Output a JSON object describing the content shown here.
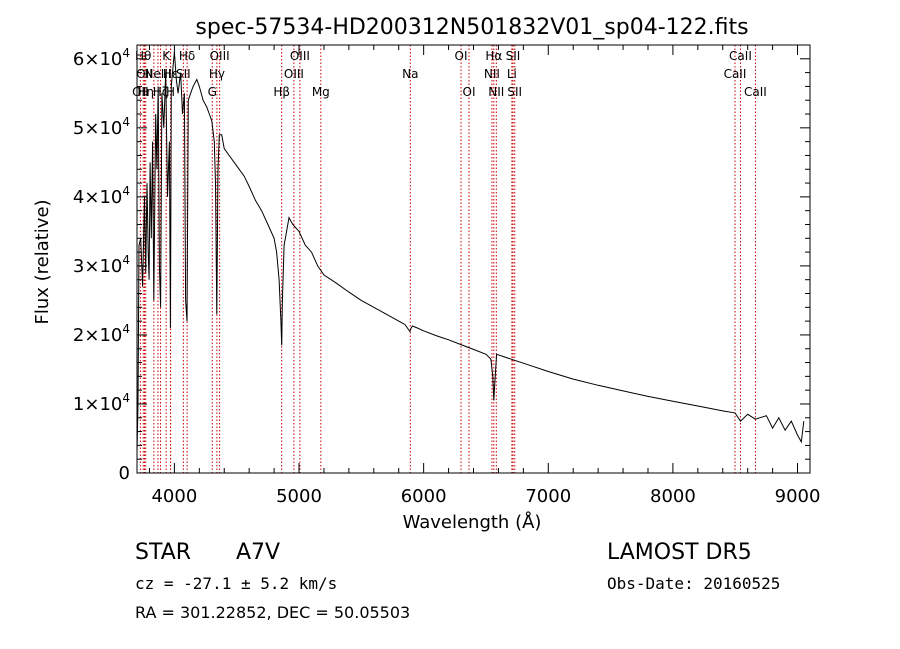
{
  "chart_data": {
    "type": "line",
    "title": "spec-57534-HD200312N501832V01_sp04-122.fits",
    "xlabel": "Wavelength (Å)",
    "ylabel": "Flux (relative)",
    "xlim": [
      3700,
      9100
    ],
    "ylim": [
      0,
      62000
    ],
    "xticks": [
      4000,
      5000,
      6000,
      7000,
      8000,
      9000
    ],
    "xtick_labels": [
      "4000",
      "5000",
      "6000",
      "7000",
      "8000",
      "9000"
    ],
    "yticks": [
      0,
      10000,
      20000,
      30000,
      40000,
      50000,
      60000
    ],
    "ytick_labels": [
      {
        "mant": "0",
        "exp": ""
      },
      {
        "mant": "1×10",
        "exp": "4"
      },
      {
        "mant": "2×10",
        "exp": "4"
      },
      {
        "mant": "3×10",
        "exp": "4"
      },
      {
        "mant": "4×10",
        "exp": "4"
      },
      {
        "mant": "5×10",
        "exp": "4"
      },
      {
        "mant": "6×10",
        "exp": "4"
      }
    ],
    "grid": false,
    "line_color": "#000000",
    "marker_color": "#cc0000",
    "series": [
      {
        "x": [
          3700,
          3708,
          3716,
          3730,
          3745,
          3760,
          3770,
          3780,
          3790,
          3797,
          3805,
          3815,
          3825,
          3835,
          3850,
          3860,
          3870,
          3880,
          3889,
          3900,
          3915,
          3930,
          3945,
          3960,
          3968,
          3975,
          3985,
          4000,
          4015,
          4030,
          4050,
          4065,
          4080,
          4090,
          4101,
          4112,
          4130,
          4150,
          4180,
          4200,
          4230,
          4260,
          4280,
          4300,
          4320,
          4330,
          4340,
          4350,
          4360,
          4380,
          4400,
          4440,
          4480,
          4520,
          4560,
          4600,
          4650,
          4700,
          4750,
          4800,
          4820,
          4840,
          4855,
          4861,
          4867,
          4880,
          4900,
          4920,
          4950,
          5000,
          5050,
          5100,
          5150,
          5200,
          5300,
          5400,
          5500,
          5600,
          5700,
          5800,
          5850,
          5890,
          5900,
          5910,
          5950,
          6000,
          6100,
          6200,
          6300,
          6400,
          6500,
          6540,
          6555,
          6563,
          6571,
          6585,
          6650,
          6800,
          7000,
          7200,
          7400,
          7600,
          7800,
          8000,
          8200,
          8400,
          8498,
          8542,
          8600,
          8662,
          8750,
          8800,
          8850,
          8900,
          8950,
          9000,
          9030,
          9050
        ],
        "y": [
          3000,
          10000,
          33000,
          34000,
          27000,
          40000,
          29000,
          42000,
          32000,
          28000,
          45000,
          34000,
          48000,
          25000,
          52000,
          44000,
          56000,
          30000,
          24000,
          55000,
          50000,
          58000,
          40000,
          48000,
          21000,
          56000,
          58000,
          61000,
          57000,
          55000,
          58000,
          52000,
          55000,
          25000,
          22000,
          54000,
          55000,
          56000,
          57000,
          56000,
          54000,
          53000,
          52000,
          51000,
          48000,
          42000,
          23000,
          44000,
          49000,
          49000,
          47000,
          46000,
          45000,
          44000,
          43000,
          41500,
          39500,
          38000,
          36000,
          34000,
          32000,
          28000,
          22000,
          18500,
          25000,
          33000,
          35000,
          37000,
          36000,
          35000,
          33000,
          32000,
          30000,
          28700,
          27500,
          26200,
          25000,
          24000,
          23000,
          22000,
          21500,
          20500,
          21000,
          21300,
          21000,
          20600,
          19900,
          19300,
          18600,
          17900,
          17200,
          16500,
          14000,
          10500,
          13000,
          17200,
          16800,
          15900,
          14700,
          13600,
          12700,
          11900,
          11100,
          10400,
          9700,
          9000,
          8700,
          7500,
          8500,
          7800,
          8300,
          6500,
          8000,
          6200,
          7500,
          5500,
          4500,
          7500
        ]
      }
    ],
    "line_markers": [
      {
        "x": 3727,
        "label": "OII",
        "row": 2
      },
      {
        "x": 3750,
        "label": "Hθ",
        "row": 0
      },
      {
        "x": 3760,
        "label": "OII",
        "row": 1
      },
      {
        "x": 3770,
        "label": "Hη",
        "row": 2
      },
      {
        "x": 3835,
        "label": "",
        "row": 0
      },
      {
        "x": 3868,
        "label": "NeIII",
        "row": 1
      },
      {
        "x": 3889,
        "label": "Hζ",
        "row": 2
      },
      {
        "x": 3934,
        "label": "K",
        "row": 0
      },
      {
        "x": 3969,
        "label": "H",
        "row": 2
      },
      {
        "x": 3970,
        "label": "Hε",
        "row": 1
      },
      {
        "x": 4072,
        "label": "SII",
        "row": 1
      },
      {
        "x": 4102,
        "label": "Hδ",
        "row": 0
      },
      {
        "x": 4304,
        "label": "G",
        "row": 2
      },
      {
        "x": 4341,
        "label": "Hγ",
        "row": 1
      },
      {
        "x": 4363,
        "label": "OIII",
        "row": 0
      },
      {
        "x": 4861,
        "label": "Hβ",
        "row": 2
      },
      {
        "x": 4959,
        "label": "OIII",
        "row": 1
      },
      {
        "x": 5007,
        "label": "OIII",
        "row": 0
      },
      {
        "x": 5175,
        "label": "Mg",
        "row": 2
      },
      {
        "x": 5893,
        "label": "Na",
        "row": 1
      },
      {
        "x": 6300,
        "label": "OI",
        "row": 0
      },
      {
        "x": 6364,
        "label": "OI",
        "row": 2
      },
      {
        "x": 6548,
        "label": "NII",
        "row": 1
      },
      {
        "x": 6563,
        "label": "Hα",
        "row": 0
      },
      {
        "x": 6583,
        "label": "NII",
        "row": 2
      },
      {
        "x": 6708,
        "label": "Li",
        "row": 1
      },
      {
        "x": 6717,
        "label": "SII",
        "row": 0
      },
      {
        "x": 6731,
        "label": "SII",
        "row": 2
      },
      {
        "x": 8498,
        "label": "CaII",
        "row": 1
      },
      {
        "x": 8542,
        "label": "CaII",
        "row": 0
      },
      {
        "x": 8662,
        "label": "CaII",
        "row": 2
      }
    ]
  },
  "info": {
    "class_label": "STAR",
    "subclass": "A7V",
    "survey": "LAMOST DR5",
    "cz_line": "cz = -27.1 ± 5.2 km/s",
    "obs_date_line": "Obs-Date: 20160525",
    "coord_line": "RA = 301.22852, DEC =  50.05503"
  }
}
